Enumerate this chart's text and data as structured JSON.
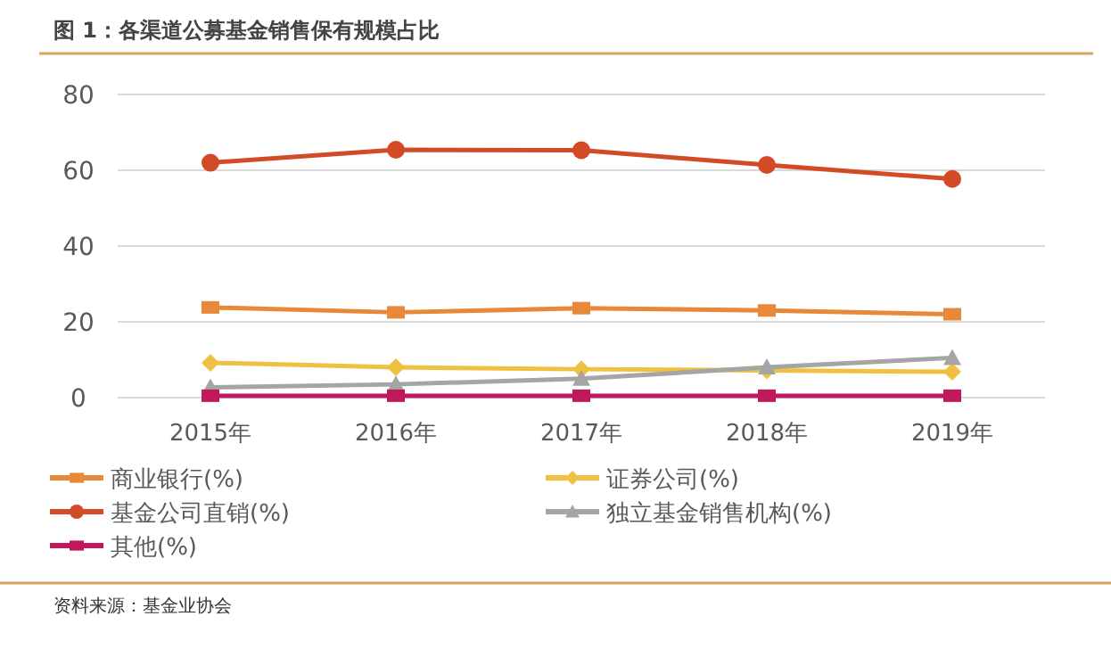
{
  "chart_data": {
    "type": "line",
    "title": "图 1：各渠道公募基金销售保有规模占比",
    "categories": [
      "2015年",
      "2016年",
      "2017年",
      "2018年",
      "2019年"
    ],
    "series": [
      {
        "name": "商业银行(%)",
        "color": "#e8893a",
        "marker": "square",
        "values": [
          23.8,
          22.5,
          23.6,
          23.0,
          22.0
        ]
      },
      {
        "name": "证券公司(%)",
        "color": "#f0c040",
        "marker": "diamond",
        "values": [
          9.2,
          8.0,
          7.5,
          7.2,
          6.8
        ]
      },
      {
        "name": "基金公司直销(%)",
        "color": "#d24a26",
        "marker": "circle",
        "values": [
          62,
          65.4,
          65.3,
          61.4,
          57.7
        ]
      },
      {
        "name": "独立基金销售机构(%)",
        "color": "#a5a5a5",
        "marker": "triangle",
        "values": [
          2.7,
          3.5,
          5.0,
          8.0,
          10.5
        ]
      },
      {
        "name": "其他(%)",
        "color": "#c0185a",
        "marker": "square",
        "values": [
          0.5,
          0.5,
          0.5,
          0.5,
          0.5
        ]
      }
    ],
    "ylim": [
      0,
      80
    ],
    "yticks": [
      0,
      20,
      40,
      60,
      80
    ],
    "grid": "y",
    "legend": "bottom",
    "annotations": [
      "资料来源：基金业协会"
    ]
  }
}
